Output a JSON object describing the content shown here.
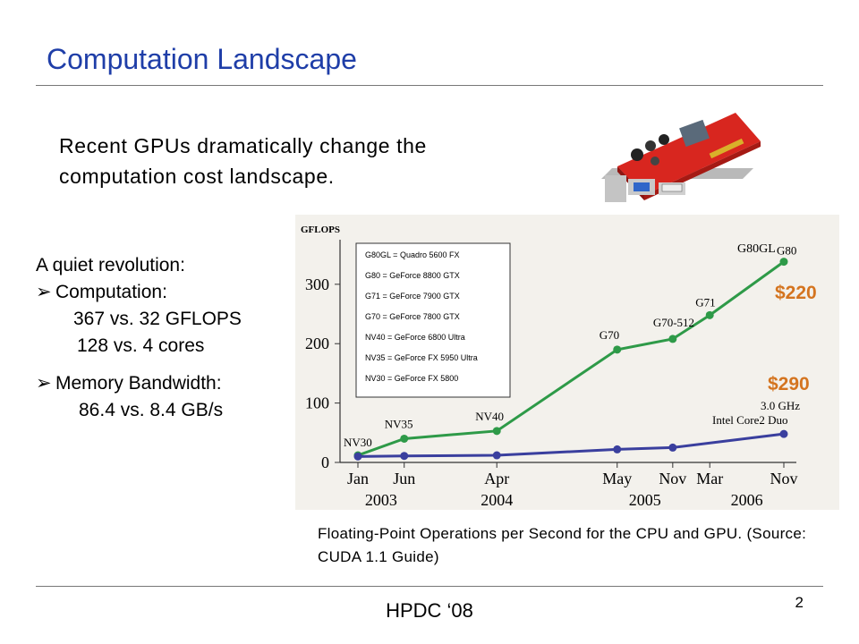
{
  "slide": {
    "title": "Computation Landscape",
    "subtitle": "Recent GPUs dramatically change the computation cost landscape.",
    "left": {
      "heading": "A quiet revolution:",
      "bullet1": "Computation:",
      "bullet1_line1": "367 vs. 32 GFLOPS",
      "bullet1_line2": "128 vs. 4 cores",
      "bullet2": "Memory Bandwidth:",
      "bullet2_line1": "86.4 vs. 8.4 GB/s"
    },
    "price_gpu": "$220",
    "price_cpu": "$290",
    "caption": "Floating-Point Operations per Second for the CPU and GPU. (Source: CUDA 1.1 Guide)",
    "footer": "HPDC ‘08",
    "page_number": "2"
  },
  "image": {
    "name": "graphics-card-photo"
  },
  "chart_data": {
    "type": "line",
    "ylabel": "GFLOPS",
    "ylim": [
      0,
      360
    ],
    "yticks": [
      0,
      100,
      200,
      300
    ],
    "legend": [
      "G80GL = Quadro 5600 FX",
      "G80 = GeForce 8800 GTX",
      "G71 = GeForce 7900 GTX",
      "G70 = GeForce 7800 GTX",
      "NV40 = GeForce 6800 Ultra",
      "NV35 = GeForce FX 5950 Ultra",
      "NV30 = GeForce FX 5800"
    ],
    "x_tick_months": [
      "Jan",
      "Jun",
      "Apr",
      "May",
      "Nov",
      "Mar",
      "Nov"
    ],
    "x_tick_years": [
      "2003",
      "2004",
      "2005",
      "2006"
    ],
    "x_tick_pos": [
      0,
      5,
      15,
      28,
      34,
      38,
      46
    ],
    "x_year_pos": [
      2.5,
      15,
      31,
      42
    ],
    "series": [
      {
        "color": "#2e9a48",
        "x": [
          0,
          5,
          15,
          28,
          34,
          38,
          46
        ],
        "y": [
          12,
          40,
          53,
          190,
          208,
          248,
          338
        ],
        "labels": [
          "NV30",
          "NV35",
          "NV40",
          "G70",
          "G70-512",
          "G71",
          "G80"
        ]
      },
      {
        "color": "#3a3f9e",
        "x": [
          0,
          5,
          15,
          28,
          34,
          46
        ],
        "y": [
          10,
          11,
          12,
          22,
          25,
          48
        ],
        "labels": []
      }
    ],
    "annotations": [
      "G80GL",
      "3.0 GHz",
      "Intel Core2 Duo"
    ]
  }
}
